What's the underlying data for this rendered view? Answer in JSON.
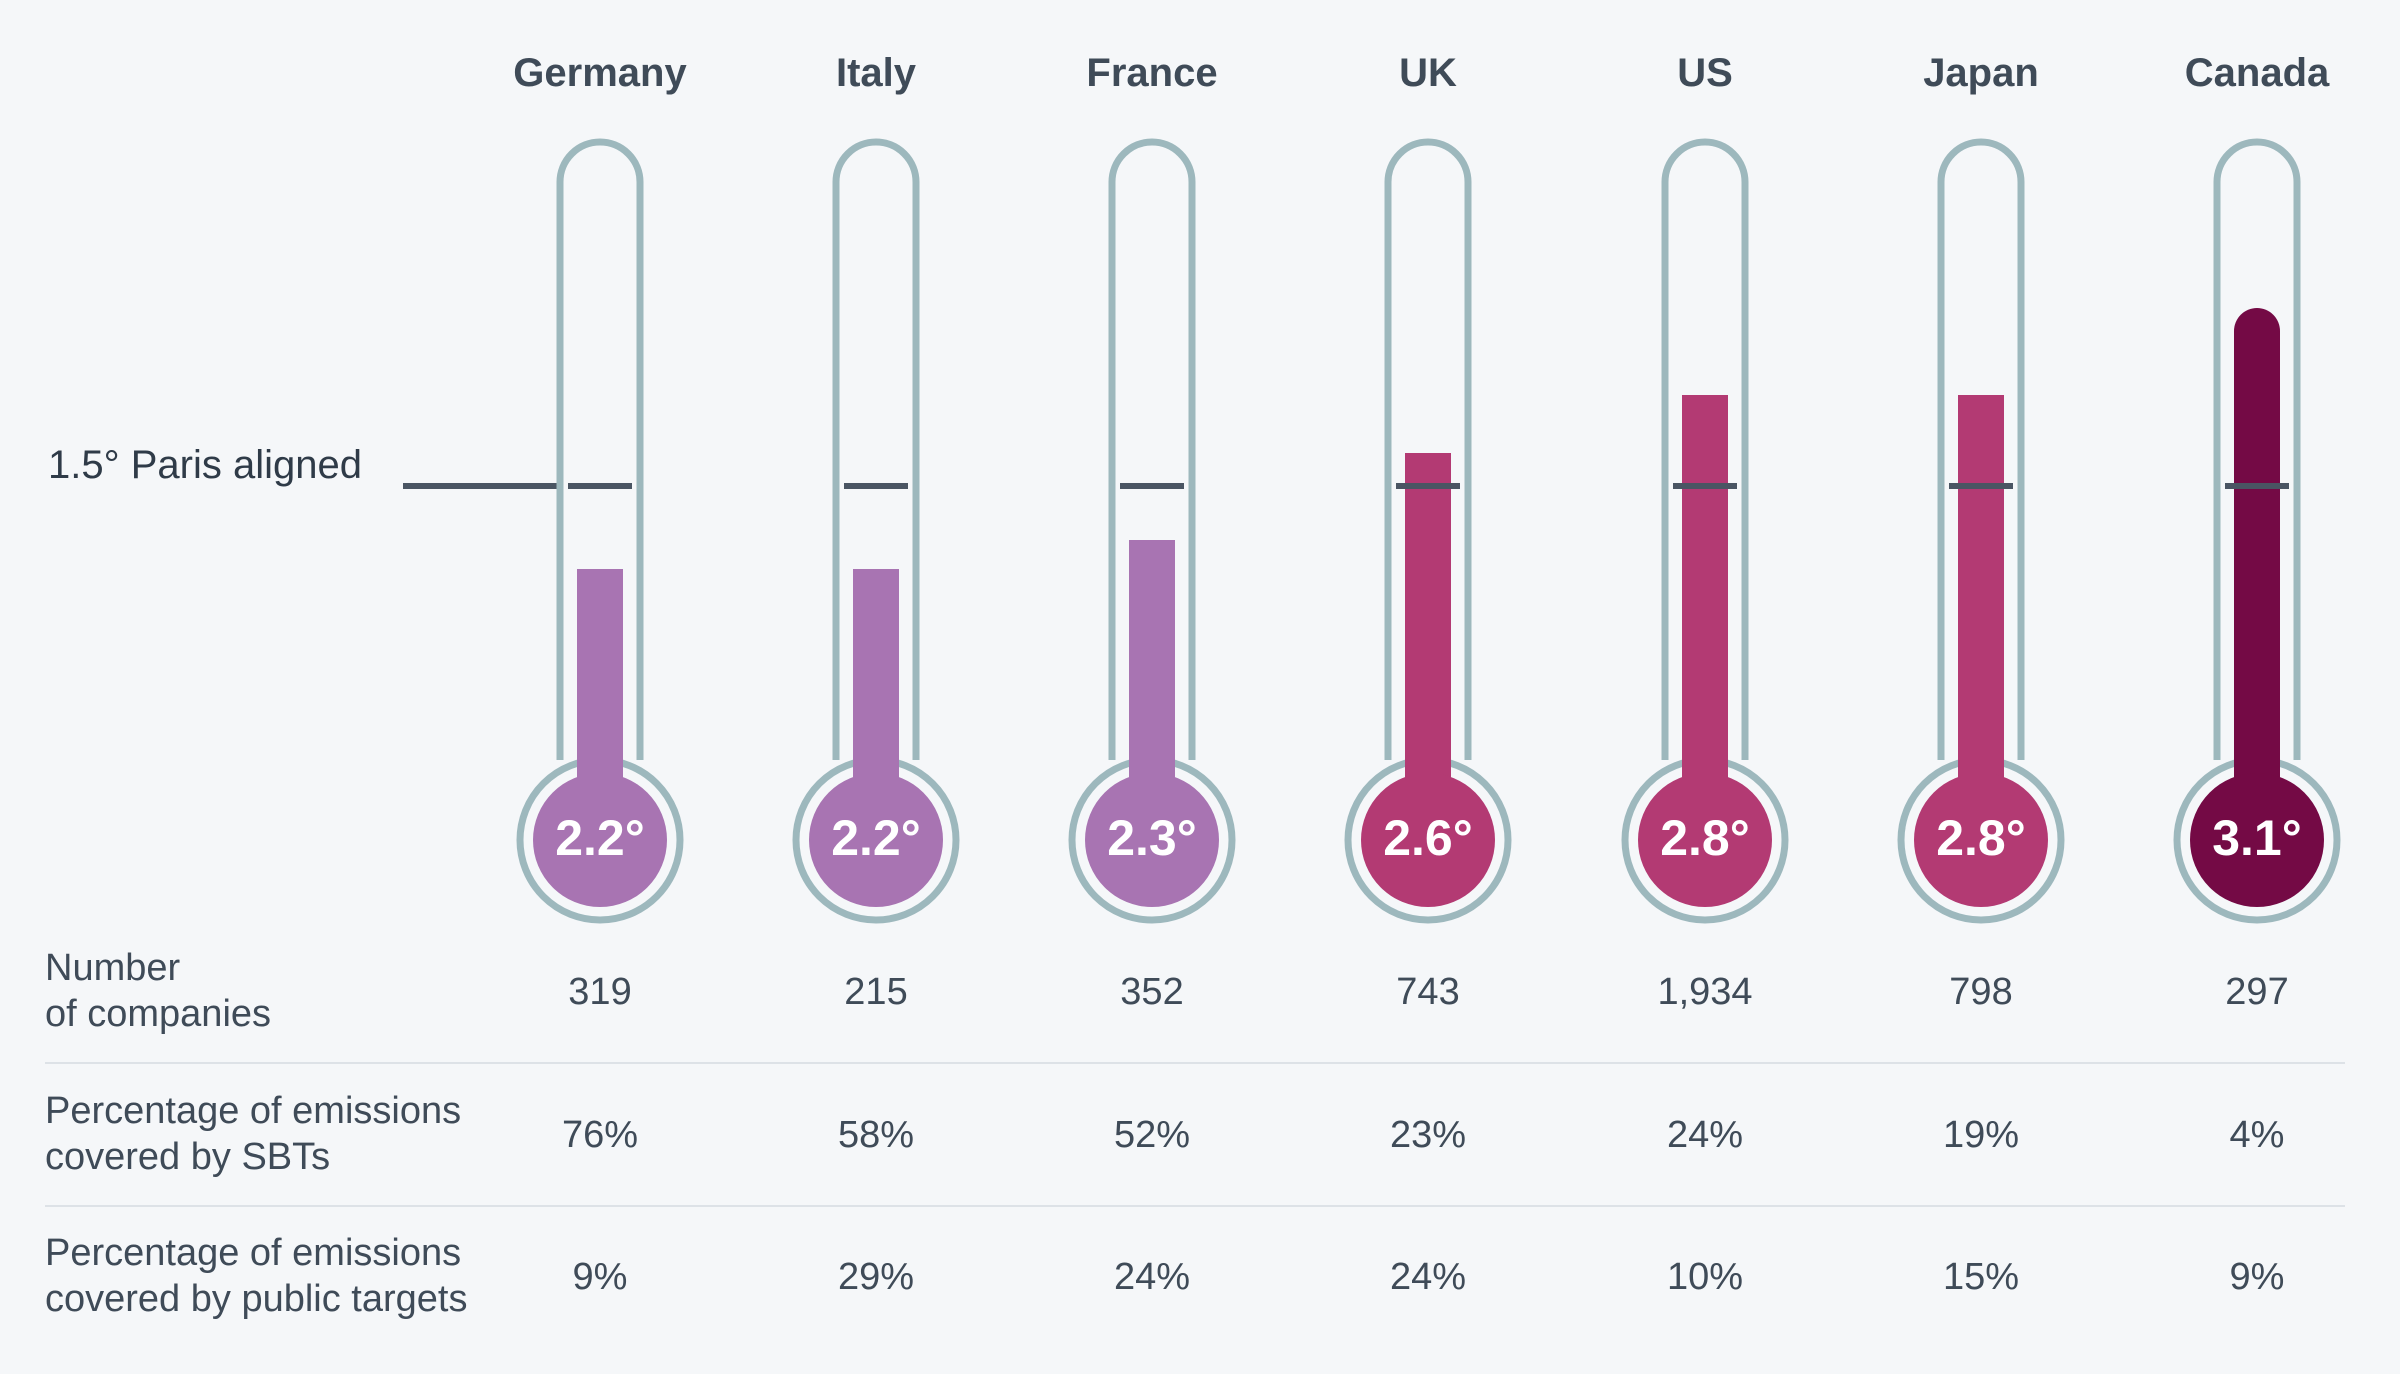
{
  "chart_data": {
    "type": "bar",
    "categories": [
      "Germany",
      "Italy",
      "France",
      "UK",
      "US",
      "Japan",
      "Canada"
    ],
    "values": [
      2.2,
      2.2,
      2.3,
      2.6,
      2.8,
      2.8,
      3.1
    ],
    "value_labels": [
      "2.2°",
      "2.2°",
      "2.3°",
      "2.6°",
      "2.8°",
      "2.8°",
      "3.1°"
    ],
    "reference_line": {
      "label": "1.5° Paris aligned",
      "value": 1.5
    },
    "color_scale": {
      "2.2": "#a874b2",
      "2.3": "#a874b2",
      "2.6": "#b33a73",
      "2.8": "#b33a73",
      "3.1": "#740a45"
    },
    "table": {
      "rows": [
        {
          "label": [
            "Number",
            "of companies"
          ],
          "values": [
            "319",
            "215",
            "352",
            "743",
            "1,934",
            "798",
            "297"
          ]
        },
        {
          "label": [
            "Percentage of emissions",
            "covered by SBTs"
          ],
          "values": [
            "76%",
            "58%",
            "52%",
            "23%",
            "24%",
            "19%",
            "4%"
          ]
        },
        {
          "label": [
            "Percentage of emissions",
            "covered by public targets"
          ],
          "values": [
            "9%",
            "29%",
            "24%",
            "24%",
            "10%",
            "15%",
            "9%"
          ]
        }
      ]
    }
  },
  "colors": {
    "tube_outline": "#9db8bd",
    "paris_line": "#4a5563",
    "text": "#3f4b58"
  }
}
